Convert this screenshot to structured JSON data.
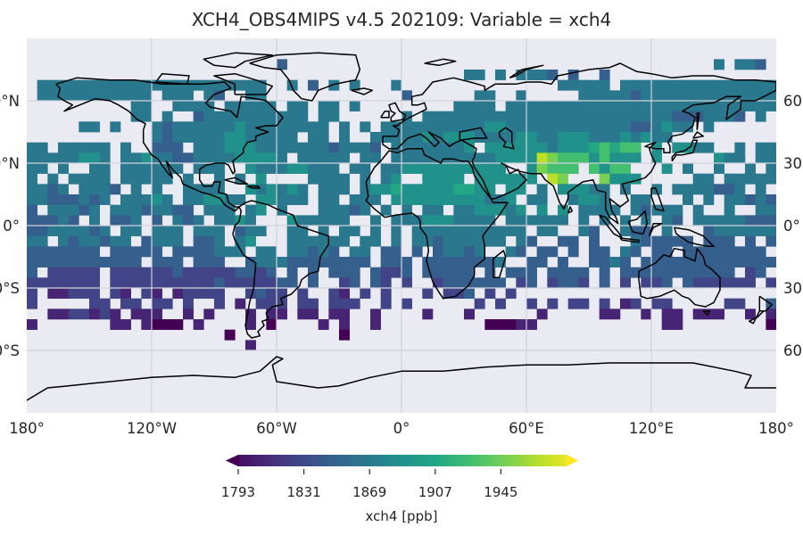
{
  "chart_data": {
    "type": "heatmap",
    "title": "XCH4_OBS4MIPS v4.5 202109: Variable = xch4",
    "projection": "equirectangular",
    "background_color": "#eaeaf2",
    "grid": true,
    "coastlines": true,
    "x_ticks": [
      "180°",
      "120°W",
      "60°W",
      "0°",
      "60°E",
      "120°E",
      "180°"
    ],
    "x_tick_values": [
      -180,
      -120,
      -60,
      0,
      60,
      120,
      180
    ],
    "y_ticks_left": [
      "60°N",
      "30°N",
      "0°",
      "30°S",
      "60°S"
    ],
    "y_ticks_right": [
      "60°N",
      "30°N",
      "0°",
      "30°S",
      "60°S"
    ],
    "y_tick_values": [
      60,
      30,
      0,
      -30,
      -60
    ],
    "lon_range": [
      -180,
      180
    ],
    "lat_range": [
      -90,
      90
    ],
    "cell_size_deg": 5,
    "first_row_top_lat": 80,
    "code_values": {
      "0": 1793,
      "1": 1812,
      "2": 1831,
      "3": 1850,
      "4": 1869,
      "5": 1888,
      "6": 1907,
      "7": 1926,
      "8": 1945,
      "9": 1964
    },
    "missing_code": ".",
    "rows": [
      "........................3.........................................4.443.......................",
      "..........................................44.4.4443.3..3...................................44444443.4......................",
      ".4444444444444444444444..4.3.4.4...4...............44444.4444444444444444444444444444444..4",
      ".44444444444.444.43..44.............3......44..4.....44444344444444444444..........",
      "..........44..4444.44444.44.44.4.........4444.44444444444444444444444444444...44.....",
      "..........44.4..34444444444.44......4.4444444444444444444444443334443.4....4........",
      ".....44.4...43444444544444444.4.4.444444444455444444444444334544.4..............",
      "............43444445544444.44.4..44444545554444554455544454544...........5..4",
      "44.44444.4..333.444555444444434443.44444445.555555455567677.5.5544..4.44",
      "44444554.4454433444455554.44444.44.444444444455559877757555.5.....544.44",
      "44.4..44.444444.444..544455444.44.445555555555..58777.7577...5.4..4..4.44",
      "4.4.4444.44444.4..4.4.5....4444.4.45..5555.555555.98...8555.....44.44444.3",
      "4434.4443.4.4..4444..545454.444.4556555556655.55.4.55544.4..4.4444334.4",
      "44333434.44454.445544.55444.44.444.555555555445.44..4554..44...4.4.443434",
      "3.44434.44434433.444.45.4...44434.4.4.44.4455545.5.5.4444.43444.4..4..44444.4.3333",
      "33343.4.334.3.434.4454...544444..4.4445554444.444444.4.4.4.4.43.4444433334",
      "33444434.44.444.444.344..44.4.44.4.4.44444444444.44..43..433.4...3444444.43.3",
      "44.4344344.3444.334.45...444444.44.4.443444444.43..33.3...433333.333.3.334.",
      "3333333.33333.3333444.44.44343.44.33.3.34434..43.33.3.33.43.33.33333333.3.",
      "33333333333.333.333..344433333333.333.33333334..33.3..3343.33333333333333.3",
      "3.22222.2222223222223323.3.3.333.3223.33333.3.333.3333.3.33333333333.23",
      "2222222.222222222232222233.3..23.32.2..2333333.23.2332.3.2.223.3222222.22",
      "2.11222.21.21.12222..2322.2..21.2.2...2.223.2.2...",
      "2.....22.22.22.2..2.1.222.22.222..2.2......2.2..2.2.22.2.12.22.....22..3",
      "..1122121.111..1.1...1.11.11.11..1....1...1......1.....11..1.11.111..1.1.",
      "1.......11.1000 1....1.0....1.1..1..........00011............11........01....1.",
      "...................0..........0.................................................",
      ".....................1.................................................."
    ],
    "colorbar": {
      "label": "xch4 [ppb]",
      "ticks": [
        "1793",
        "1831",
        "1869",
        "1907",
        "1945"
      ],
      "tick_values": [
        1793,
        1831,
        1869,
        1907,
        1945
      ],
      "vmin": 1793,
      "vmax": 1983,
      "extend": "both",
      "colormap": "viridis",
      "orientation": "horizontal"
    }
  }
}
